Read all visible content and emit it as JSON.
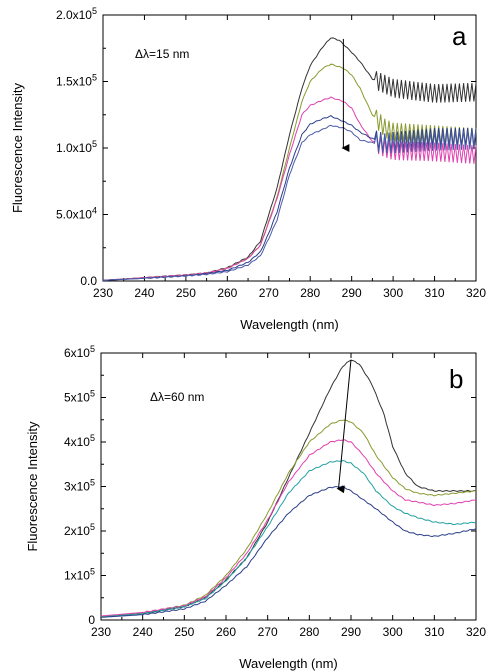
{
  "chart_data": [
    {
      "type": "line",
      "panel_label": "a",
      "annotation": "Δλ=15 nm",
      "xlabel": "Wavelength (nm)",
      "ylabel": "Fluorescence Intensity",
      "xlim": [
        230,
        320
      ],
      "ylim": [
        0,
        200000
      ],
      "x_ticks": [
        230,
        240,
        250,
        260,
        270,
        280,
        290,
        300,
        310,
        320
      ],
      "y_ticks": [
        0,
        50000,
        100000,
        150000,
        200000
      ],
      "y_tick_labels": [
        {
          "text": "0.0",
          "exp": ""
        },
        {
          "text": "5.0x10",
          "exp": "4"
        },
        {
          "text": "1.0x10",
          "exp": "5"
        },
        {
          "text": "1.5x10",
          "exp": "5"
        },
        {
          "text": "2.0x10",
          "exp": "5"
        }
      ],
      "grid": false,
      "legend": "none",
      "arrow": {
        "from": [
          288,
          182000
        ],
        "to": [
          288,
          100000
        ]
      },
      "series": [
        {
          "color": "#333333",
          "oscillate": true,
          "points": [
            [
              230,
              500
            ],
            [
              240,
              2500
            ],
            [
              250,
              4500
            ],
            [
              255,
              6000
            ],
            [
              260,
              10000
            ],
            [
              265,
              18000
            ],
            [
              268,
              30000
            ],
            [
              270,
              50000
            ],
            [
              272,
              70000
            ],
            [
              275,
              110000
            ],
            [
              278,
              145000
            ],
            [
              280,
              162000
            ],
            [
              283,
              176000
            ],
            [
              285,
              183000
            ],
            [
              287,
              181000
            ],
            [
              290,
              172000
            ],
            [
              292,
              165000
            ],
            [
              295,
              152000
            ],
            [
              298,
              148000
            ],
            [
              300,
              145000
            ],
            [
              310,
              141000
            ],
            [
              320,
              142000
            ]
          ]
        },
        {
          "color": "#8a9a30",
          "oscillate": true,
          "points": [
            [
              230,
              500
            ],
            [
              240,
              2500
            ],
            [
              250,
              4500
            ],
            [
              255,
              6000
            ],
            [
              260,
              9500
            ],
            [
              265,
              17000
            ],
            [
              268,
              27000
            ],
            [
              270,
              45000
            ],
            [
              272,
              63000
            ],
            [
              275,
              100000
            ],
            [
              278,
              135000
            ],
            [
              280,
              150000
            ],
            [
              283,
              160000
            ],
            [
              285,
              163000
            ],
            [
              288,
              160000
            ],
            [
              290,
              155000
            ],
            [
              292,
              145000
            ],
            [
              295,
              125000
            ],
            [
              298,
              115000
            ],
            [
              300,
              112000
            ],
            [
              310,
              110000
            ],
            [
              320,
              108000
            ]
          ]
        },
        {
          "color": "#e040b0",
          "oscillate": true,
          "points": [
            [
              230,
              500
            ],
            [
              240,
              2500
            ],
            [
              250,
              4500
            ],
            [
              255,
              6000
            ],
            [
              260,
              9500
            ],
            [
              265,
              17000
            ],
            [
              268,
              27000
            ],
            [
              270,
              44000
            ],
            [
              272,
              62000
            ],
            [
              275,
              95000
            ],
            [
              278,
              125000
            ],
            [
              280,
              132000
            ],
            [
              283,
              136000
            ],
            [
              285,
              138000
            ],
            [
              288,
              135000
            ],
            [
              290,
              130000
            ],
            [
              292,
              118000
            ],
            [
              295,
              105000
            ],
            [
              298,
              100000
            ],
            [
              300,
              98000
            ],
            [
              310,
              97000
            ],
            [
              320,
              95000
            ]
          ]
        },
        {
          "color": "#2a3d8a",
          "oscillate": true,
          "points": [
            [
              230,
              500
            ],
            [
              240,
              2000
            ],
            [
              250,
              4000
            ],
            [
              255,
              5500
            ],
            [
              260,
              8000
            ],
            [
              265,
              14000
            ],
            [
              268,
              22000
            ],
            [
              270,
              36000
            ],
            [
              272,
              52000
            ],
            [
              275,
              85000
            ],
            [
              278,
              110000
            ],
            [
              280,
              118000
            ],
            [
              283,
              122000
            ],
            [
              285,
              124000
            ],
            [
              288,
              120000
            ],
            [
              290,
              117000
            ],
            [
              292,
              112000
            ],
            [
              295,
              107000
            ],
            [
              298,
              104000
            ],
            [
              300,
              105000
            ],
            [
              310,
              108000
            ],
            [
              320,
              108000
            ]
          ]
        },
        {
          "color": "#4a5aa8",
          "oscillate": true,
          "points": [
            [
              230,
              500
            ],
            [
              240,
              2000
            ],
            [
              250,
              3800
            ],
            [
              255,
              5000
            ],
            [
              260,
              7000
            ],
            [
              265,
              12000
            ],
            [
              268,
              19000
            ],
            [
              270,
              32000
            ],
            [
              272,
              46000
            ],
            [
              275,
              80000
            ],
            [
              278,
              104000
            ],
            [
              280,
              110000
            ],
            [
              283,
              114000
            ],
            [
              285,
              117000
            ],
            [
              288,
              115000
            ],
            [
              290,
              112000
            ],
            [
              292,
              106000
            ],
            [
              295,
              104000
            ],
            [
              298,
              103000
            ],
            [
              300,
              103000
            ],
            [
              310,
              105000
            ],
            [
              320,
              106000
            ]
          ]
        }
      ]
    },
    {
      "type": "line",
      "panel_label": "b",
      "annotation": "Δλ=60 nm",
      "xlabel": "Wavelength (nm)",
      "ylabel": "Fluorescence Intensity",
      "xlim": [
        230,
        320
      ],
      "ylim": [
        0,
        600000
      ],
      "x_ticks": [
        230,
        240,
        250,
        260,
        270,
        280,
        290,
        300,
        310,
        320
      ],
      "y_ticks": [
        0,
        100000,
        200000,
        300000,
        400000,
        500000,
        600000
      ],
      "y_tick_labels": [
        {
          "text": "0",
          "exp": ""
        },
        {
          "text": "1x10",
          "exp": "5"
        },
        {
          "text": "2x10",
          "exp": "5"
        },
        {
          "text": "3x10",
          "exp": "5"
        },
        {
          "text": "4x10",
          "exp": "5"
        },
        {
          "text": "5x10",
          "exp": "5"
        },
        {
          "text": "6x10",
          "exp": "5"
        }
      ],
      "grid": false,
      "legend": "none",
      "arrow": {
        "from": [
          290,
          585000
        ],
        "to": [
          287,
          295000
        ]
      },
      "series": [
        {
          "color": "#333333",
          "oscillate": false,
          "points": [
            [
              230,
              8000
            ],
            [
              240,
              15000
            ],
            [
              250,
              30000
            ],
            [
              255,
              50000
            ],
            [
              260,
              90000
            ],
            [
              265,
              140000
            ],
            [
              270,
              220000
            ],
            [
              275,
              320000
            ],
            [
              280,
              420000
            ],
            [
              285,
              520000
            ],
            [
              288,
              570000
            ],
            [
              290,
              585000
            ],
            [
              292,
              575000
            ],
            [
              295,
              530000
            ],
            [
              298,
              460000
            ],
            [
              300,
              390000
            ],
            [
              303,
              330000
            ],
            [
              306,
              300000
            ],
            [
              310,
              290000
            ],
            [
              315,
              290000
            ],
            [
              320,
              290000
            ]
          ]
        },
        {
          "color": "#8a9a30",
          "oscillate": false,
          "points": [
            [
              230,
              8000
            ],
            [
              240,
              16000
            ],
            [
              250,
              33000
            ],
            [
              255,
              55000
            ],
            [
              260,
              100000
            ],
            [
              265,
              160000
            ],
            [
              270,
              240000
            ],
            [
              275,
              330000
            ],
            [
              280,
              400000
            ],
            [
              285,
              440000
            ],
            [
              288,
              450000
            ],
            [
              290,
              445000
            ],
            [
              293,
              420000
            ],
            [
              296,
              370000
            ],
            [
              300,
              320000
            ],
            [
              303,
              295000
            ],
            [
              306,
              285000
            ],
            [
              310,
              280000
            ],
            [
              315,
              285000
            ],
            [
              320,
              290000
            ]
          ]
        },
        {
          "color": "#e040b0",
          "oscillate": false,
          "points": [
            [
              230,
              9000
            ],
            [
              240,
              17000
            ],
            [
              250,
              32000
            ],
            [
              255,
              52000
            ],
            [
              260,
              95000
            ],
            [
              265,
              150000
            ],
            [
              270,
              225000
            ],
            [
              275,
              310000
            ],
            [
              280,
              370000
            ],
            [
              285,
              400000
            ],
            [
              288,
              405000
            ],
            [
              290,
              400000
            ],
            [
              293,
              370000
            ],
            [
              296,
              330000
            ],
            [
              300,
              290000
            ],
            [
              303,
              270000
            ],
            [
              306,
              265000
            ],
            [
              310,
              258000
            ],
            [
              315,
              262000
            ],
            [
              320,
              270000
            ]
          ]
        },
        {
          "color": "#20a0a0",
          "oscillate": false,
          "points": [
            [
              230,
              7000
            ],
            [
              240,
              14000
            ],
            [
              250,
              30000
            ],
            [
              255,
              48000
            ],
            [
              260,
              88000
            ],
            [
              265,
              140000
            ],
            [
              270,
              210000
            ],
            [
              275,
              285000
            ],
            [
              280,
              335000
            ],
            [
              285,
              355000
            ],
            [
              288,
              358000
            ],
            [
              290,
              352000
            ],
            [
              293,
              330000
            ],
            [
              296,
              290000
            ],
            [
              300,
              255000
            ],
            [
              303,
              240000
            ],
            [
              306,
              230000
            ],
            [
              310,
              220000
            ],
            [
              315,
              215000
            ],
            [
              320,
              220000
            ]
          ]
        },
        {
          "color": "#2a3d8a",
          "oscillate": false,
          "points": [
            [
              230,
              6000
            ],
            [
              240,
              12000
            ],
            [
              250,
              25000
            ],
            [
              255,
              42000
            ],
            [
              260,
              78000
            ],
            [
              265,
              120000
            ],
            [
              270,
              185000
            ],
            [
              275,
              240000
            ],
            [
              280,
              280000
            ],
            [
              285,
              298000
            ],
            [
              288,
              300000
            ],
            [
              290,
              290000
            ],
            [
              293,
              270000
            ],
            [
              296,
              250000
            ],
            [
              300,
              220000
            ],
            [
              303,
              200000
            ],
            [
              306,
              192000
            ],
            [
              310,
              188000
            ],
            [
              315,
              195000
            ],
            [
              320,
              205000
            ]
          ]
        }
      ]
    }
  ]
}
